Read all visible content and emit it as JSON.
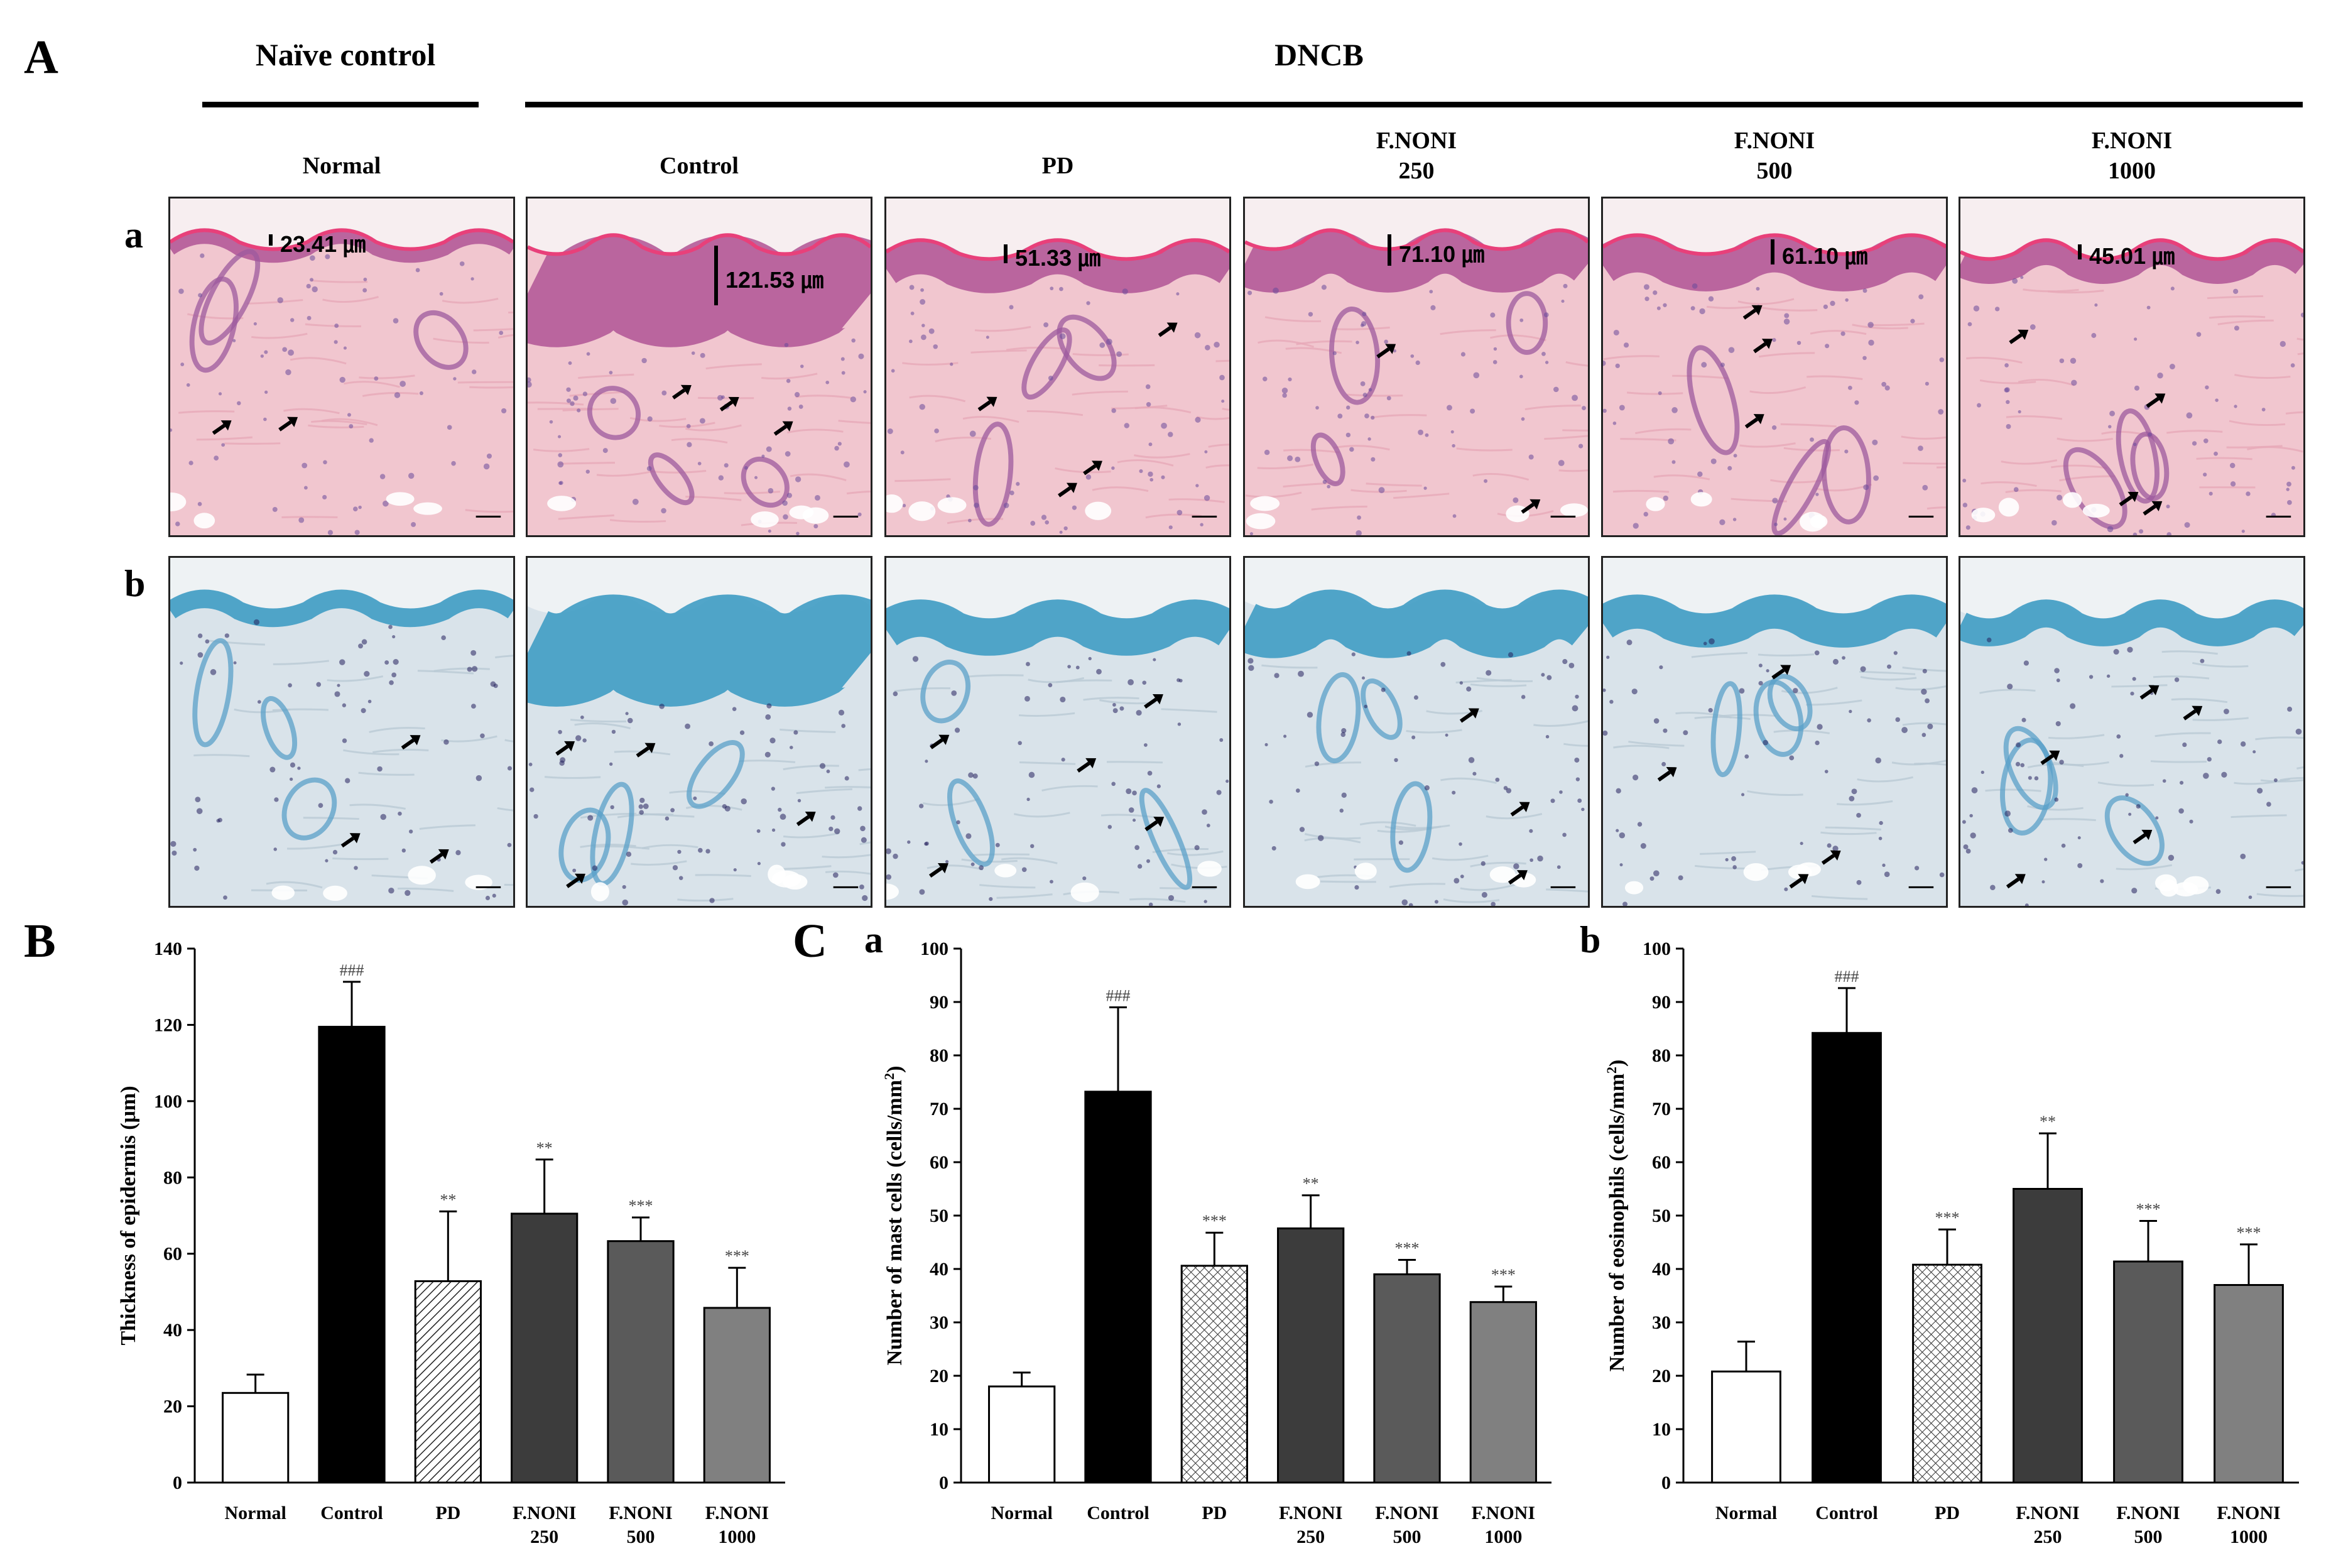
{
  "panel_labels": {
    "A": "A",
    "B": "B",
    "C": "C",
    "a": "a",
    "b": "b"
  },
  "groups": {
    "naive": "Naïve control",
    "dncb": "DNCB"
  },
  "columns": [
    {
      "line1": "Normal",
      "line2": ""
    },
    {
      "line1": "Control",
      "line2": ""
    },
    {
      "line1": "PD",
      "line2": ""
    },
    {
      "line1": "F.NONI",
      "line2": "250"
    },
    {
      "line1": "F.NONI",
      "line2": "500"
    },
    {
      "line1": "F.NONI",
      "line2": "1000"
    }
  ],
  "measurements": [
    "23.41 ㎛",
    "121.53 ㎛",
    "51.33 ㎛",
    "71.10 ㎛",
    "61.10 ㎛",
    "45.01 ㎛"
  ],
  "colors": {
    "he_bg": "#f1c6cf",
    "he_epi": "#b45a98",
    "he_stratum": "#e8407a",
    "tb_bg": "#d9e3ea",
    "tb_epi": "#3f9cc4",
    "tb_cell": "#24205c"
  },
  "chart_data": [
    {
      "type": "bar",
      "panel": "B",
      "categories": [
        "Normal",
        "Control",
        "PD",
        "F.NONI 250",
        "F.NONI 500",
        "F.NONI 1000"
      ],
      "category_lines": [
        [
          "Normal"
        ],
        [
          "Control"
        ],
        [
          "PD"
        ],
        [
          "F.NONI",
          "250"
        ],
        [
          "F.NONI",
          "500"
        ],
        [
          "F.NONI",
          "1000"
        ]
      ],
      "values": [
        23.5,
        119.5,
        52.8,
        70.5,
        63.3,
        45.8
      ],
      "errors": [
        4.8,
        11.8,
        18.3,
        14.2,
        6.2,
        10.5
      ],
      "significance": [
        "",
        "###",
        "**",
        "**",
        "***",
        "***"
      ],
      "fills": [
        "white",
        "black",
        "hatch",
        "#3c3c3c",
        "#5a5a5a",
        "#808080"
      ],
      "ylabel": "Thickness of epidermis (μm)",
      "ylim": [
        0,
        140
      ],
      "yticks": [
        0,
        20,
        40,
        60,
        80,
        100,
        120,
        140
      ]
    },
    {
      "type": "bar",
      "panel": "C-a",
      "categories": [
        "Normal",
        "Control",
        "PD",
        "F.NONI 250",
        "F.NONI 500",
        "F.NONI 1000"
      ],
      "category_lines": [
        [
          "Normal"
        ],
        [
          "Control"
        ],
        [
          "PD"
        ],
        [
          "F.NONI",
          "250"
        ],
        [
          "F.NONI",
          "500"
        ],
        [
          "F.NONI",
          "1000"
        ]
      ],
      "values": [
        18.0,
        73.2,
        40.6,
        47.6,
        39.0,
        33.8
      ],
      "errors": [
        2.6,
        15.8,
        6.2,
        6.2,
        2.7,
        2.9
      ],
      "significance": [
        "",
        "###",
        "***",
        "**",
        "***",
        "***"
      ],
      "fills": [
        "white",
        "black",
        "cross",
        "#3c3c3c",
        "#5a5a5a",
        "#808080"
      ],
      "ylabel": "Number of mast cells (cells/mm",
      "ylabel_sup": "2",
      "ylabel_end": ")",
      "ylim": [
        0,
        100
      ],
      "yticks": [
        0,
        10,
        20,
        30,
        40,
        50,
        60,
        70,
        80,
        90,
        100
      ]
    },
    {
      "type": "bar",
      "panel": "C-b",
      "categories": [
        "Normal",
        "Control",
        "PD",
        "F.NONI 250",
        "F.NONI 500",
        "F.NONI 1000"
      ],
      "category_lines": [
        [
          "Normal"
        ],
        [
          "Control"
        ],
        [
          "PD"
        ],
        [
          "F.NONI",
          "250"
        ],
        [
          "F.NONI",
          "500"
        ],
        [
          "F.NONI",
          "1000"
        ]
      ],
      "values": [
        20.8,
        84.2,
        40.8,
        55.0,
        41.4,
        37.0
      ],
      "errors": [
        5.6,
        8.4,
        6.6,
        10.4,
        7.6,
        7.6
      ],
      "significance": [
        "",
        "###",
        "***",
        "**",
        "***",
        "***"
      ],
      "fills": [
        "white",
        "black",
        "cross",
        "#3c3c3c",
        "#5a5a5a",
        "#808080"
      ],
      "ylabel": "Number of eosinophils (cells/mm",
      "ylabel_sup": "2",
      "ylabel_end": ")",
      "ylim": [
        0,
        100
      ],
      "yticks": [
        0,
        10,
        20,
        30,
        40,
        50,
        60,
        70,
        80,
        90,
        100
      ]
    }
  ]
}
